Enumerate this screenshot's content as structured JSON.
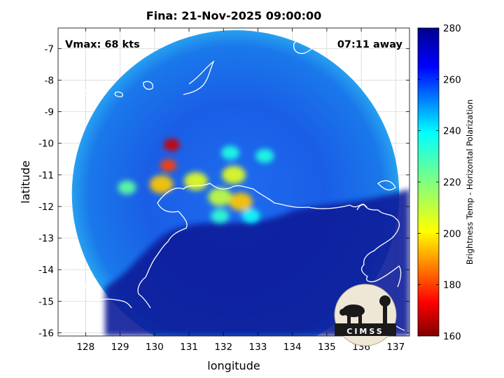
{
  "chart_data": {
    "type": "heatmap",
    "title": "Fina: 21-Nov-2025 09:00:00",
    "annotations": {
      "vmax": "Vmax: 68 kts",
      "time_away": "07:11 away"
    },
    "xlabel": "longitude",
    "ylabel": "latitude",
    "xlim": [
      127.2,
      137.4
    ],
    "ylim": [
      -16.1,
      -6.35
    ],
    "xticks": [
      "128",
      "129",
      "130",
      "131",
      "132",
      "133",
      "134",
      "135",
      "136",
      "137"
    ],
    "yticks": [
      "-7",
      "-8",
      "-9",
      "-10",
      "-11",
      "-12",
      "-13",
      "-14",
      "-15",
      "-16"
    ],
    "grid": true,
    "colorbar": {
      "label": "Brightness Temp - Horizontal Polarization",
      "min": 160,
      "max": 280,
      "ticks": [
        "280",
        "260",
        "240",
        "220",
        "200",
        "180",
        "160"
      ]
    },
    "swath": {
      "center_lon": 132.35,
      "center_lat": -11.6,
      "radius_deg": 4.75
    },
    "features": [
      {
        "lon": 130.5,
        "lat": -10.05,
        "value": 168
      },
      {
        "lon": 130.4,
        "lat": -10.7,
        "value": 180
      },
      {
        "lon": 130.2,
        "lat": -11.3,
        "value": 195
      },
      {
        "lon": 131.2,
        "lat": -11.2,
        "value": 205
      },
      {
        "lon": 131.9,
        "lat": -11.7,
        "value": 210
      },
      {
        "lon": 132.5,
        "lat": -11.85,
        "value": 195
      },
      {
        "lon": 132.3,
        "lat": -11.0,
        "value": 205
      },
      {
        "lon": 129.2,
        "lat": -11.4,
        "value": 225
      },
      {
        "lon": 132.2,
        "lat": -10.3,
        "value": 235
      },
      {
        "lon": 133.2,
        "lat": -10.4,
        "value": 235
      },
      {
        "lon": 132.8,
        "lat": -12.3,
        "value": 238
      },
      {
        "lon": 131.9,
        "lat": -12.3,
        "value": 232
      }
    ]
  },
  "logo": {
    "text": "CIMSS"
  }
}
